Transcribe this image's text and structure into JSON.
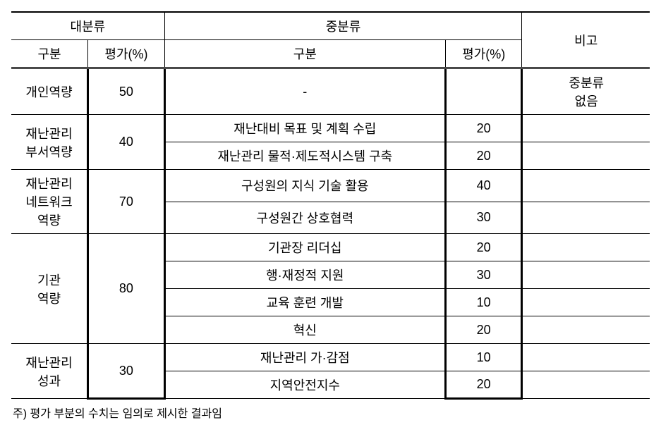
{
  "table": {
    "header": {
      "group_major": "대분류",
      "group_mid": "중분류",
      "group_remark": "비고",
      "sub_division": "구분",
      "sub_eval": "평가(%)"
    },
    "rows": {
      "r1": {
        "major_div": "개인역량",
        "major_eval": "50",
        "mid_div": "-",
        "mid_eval": "",
        "remark_line1": "중분류",
        "remark_line2": "없음"
      },
      "r2": {
        "major_div_line1": "재난관리",
        "major_div_line2": "부서역량",
        "major_eval": "40",
        "mid_div_a": "재난대비 목표 및 계획 수립",
        "mid_eval_a": "20",
        "mid_div_b": "재난관리 물적·제도적시스템 구축",
        "mid_eval_b": "20"
      },
      "r3": {
        "major_div_line1": "재난관리",
        "major_div_line2": "네트워크",
        "major_div_line3": "역량",
        "major_eval": "70",
        "mid_div_a": "구성원의 지식 기술 활용",
        "mid_eval_a": "40",
        "mid_div_b": "구성원간 상호협력",
        "mid_eval_b": "30"
      },
      "r4": {
        "major_div_line1": "기관",
        "major_div_line2": "역량",
        "major_eval": "80",
        "mid_div_a": "기관장 리더십",
        "mid_eval_a": "20",
        "mid_div_b": "행·재정적 지원",
        "mid_eval_b": "30",
        "mid_div_c": "교육 훈련 개발",
        "mid_eval_c": "10",
        "mid_div_d": "혁신",
        "mid_eval_d": "20"
      },
      "r5": {
        "major_div_line1": "재난관리",
        "major_div_line2": "성과",
        "major_eval": "30",
        "mid_div_a": "재난관리 가·감점",
        "mid_eval_a": "10",
        "mid_div_b": "지역안전지수",
        "mid_eval_b": "20"
      }
    },
    "footnote": "주) 평가 부분의 수치는 임의로 제시한 결과임"
  }
}
